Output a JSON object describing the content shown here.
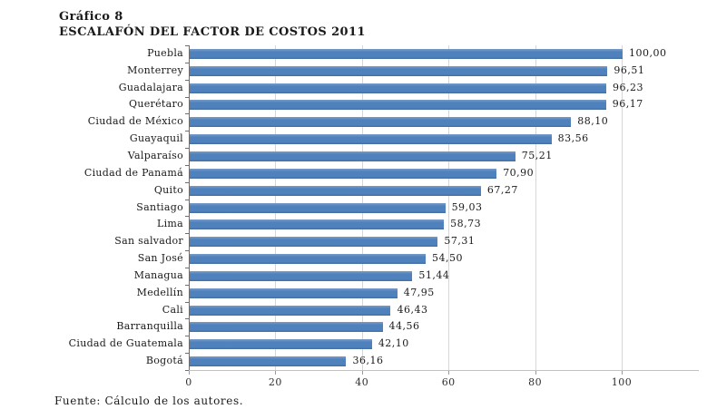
{
  "header": {
    "title_line1": "Gráfico 8",
    "title_line2": "ESCALAFÓN DEL FACTOR DE COSTOS 2011"
  },
  "footer": {
    "source": "Fuente: Cálculo de los autores."
  },
  "chart_data": {
    "type": "bar",
    "orientation": "horizontal",
    "title": "ESCALAFÓN DEL FACTOR DE COSTOS 2011",
    "categories": [
      "Puebla",
      "Monterrey",
      "Guadalajara",
      "Querétaro",
      "Ciudad de México",
      "Guayaquil",
      "Valparaíso",
      "Ciudad de Panamá",
      "Quito",
      "Santiago",
      "Lima",
      "San salvador",
      "San José",
      "Managua",
      "Medellín",
      "Cali",
      "Barranquilla",
      "Ciudad de Guatemala",
      "Bogotá"
    ],
    "values": [
      100.0,
      96.51,
      96.23,
      96.17,
      88.1,
      83.56,
      75.21,
      70.9,
      67.27,
      59.03,
      58.73,
      57.31,
      54.5,
      51.44,
      47.95,
      46.43,
      44.56,
      42.1,
      36.16
    ],
    "value_labels": [
      "100,00",
      "96,51",
      "96,23",
      "96,17",
      "88,10",
      "83,56",
      "75,21",
      "70,90",
      "67,27",
      "59,03",
      "58,73",
      "57,31",
      "54,50",
      "51,44",
      "47,95",
      "46,43",
      "44,56",
      "42,10",
      "36,16"
    ],
    "xlabel": "",
    "ylabel": "",
    "xlim": [
      0,
      100
    ],
    "x_ticks": [
      0,
      20,
      40,
      60,
      80,
      100
    ],
    "x_tick_labels": [
      "0",
      "20",
      "40",
      "60",
      "80",
      "100"
    ],
    "grid": "vertical",
    "legend": "none",
    "bar_color": "#4f81bd",
    "gridline_color": "#d6d6d6",
    "category_axis_color": "#6e6e6e",
    "value_axis_color": "#c2c2c2"
  }
}
